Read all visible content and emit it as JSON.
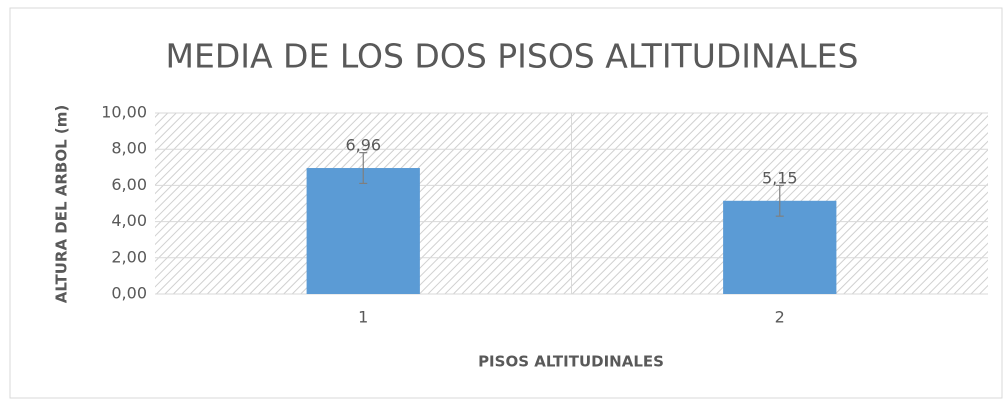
{
  "chart_data": {
    "type": "bar",
    "title": "MEDIA DE LOS DOS PISOS ALTITUDINALES",
    "x_label": "PISOS ALTITUDINALES",
    "y_label": "ALTURA DEL ARBOL (m)",
    "categories": [
      "1",
      "2"
    ],
    "values": [
      6.96,
      5.15
    ],
    "value_labels": [
      "6,96",
      "5,15"
    ],
    "errors": [
      0.85,
      0.85
    ],
    "color": "#5b9bd5",
    "ylim": [
      0,
      10
    ],
    "yticks": [
      {
        "value": 0,
        "label": "0,00"
      },
      {
        "value": 2,
        "label": "2,00"
      },
      {
        "value": 4,
        "label": "4,00"
      },
      {
        "value": 6,
        "label": "6,00"
      },
      {
        "value": 8,
        "label": "8,00"
      },
      {
        "value": 10,
        "label": "10,00"
      }
    ],
    "grid": true
  }
}
